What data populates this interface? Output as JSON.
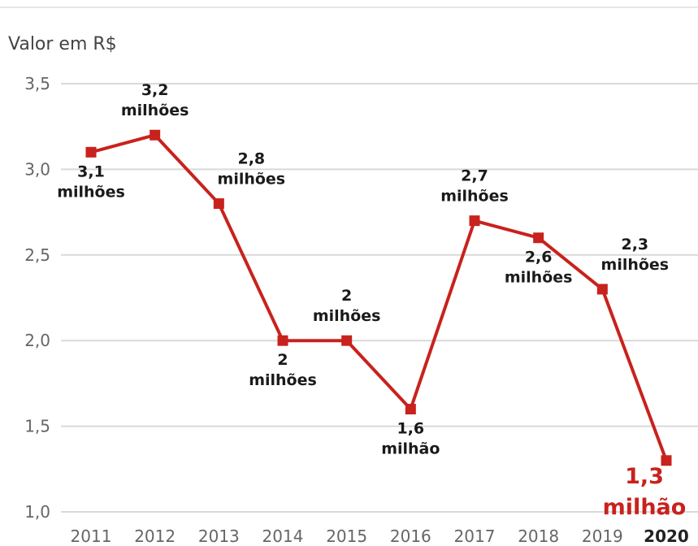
{
  "chart_data": {
    "type": "line",
    "ylabel": "Valor em R$",
    "x": [
      "2011",
      "2012",
      "2013",
      "2014",
      "2015",
      "2016",
      "2017",
      "2018",
      "2019",
      "2020"
    ],
    "series": [
      {
        "values": [
          3.1,
          3.2,
          2.8,
          2.0,
          2.0,
          1.6,
          2.7,
          2.6,
          2.3,
          1.3
        ]
      }
    ],
    "data_labels": [
      [
        "3,1",
        "milhões"
      ],
      [
        "3,2",
        "milhões"
      ],
      [
        "2,8",
        "milhões"
      ],
      [
        "2",
        "milhões"
      ],
      [
        "2",
        "milhões"
      ],
      [
        "1,6",
        "milhão"
      ],
      [
        "2,7",
        "milhões"
      ],
      [
        "2,6",
        "milhões"
      ],
      [
        "2,3",
        "milhões"
      ],
      [
        "1,3",
        "milhão"
      ]
    ],
    "label_positions": [
      "below",
      "above",
      "above-right",
      "below",
      "above",
      "below",
      "above",
      "below",
      "above-right",
      "below-left"
    ],
    "highlight_index": 9,
    "y_ticks": [
      1.0,
      1.5,
      2.0,
      2.5,
      3.0,
      3.5
    ],
    "y_tick_labels": [
      "1,0",
      "1,5",
      "2,0",
      "2,5",
      "3,0",
      "3,5"
    ],
    "ylim": [
      1.0,
      3.5
    ],
    "grid": true,
    "line_color": "#c8221d",
    "highlight_color": "#c8221d"
  }
}
